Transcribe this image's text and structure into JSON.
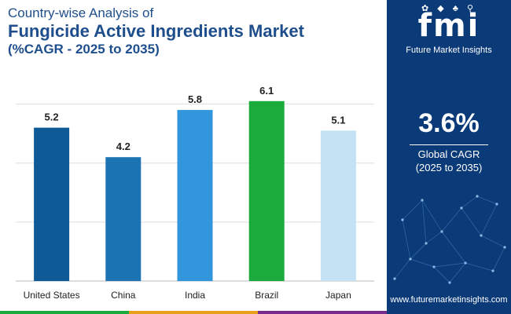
{
  "title": {
    "line1": "Country-wise Analysis of",
    "line2": "Fungicide Active Ingredients Market",
    "line3": "(%CAGR - 2025 to 2035)"
  },
  "chart_data": {
    "type": "bar",
    "categories": [
      "United States",
      "China",
      "India",
      "Brazil",
      "Japan"
    ],
    "values": [
      5.2,
      4.2,
      5.8,
      6.1,
      5.1
    ],
    "value_labels": [
      "5.2",
      "4.2",
      "5.8",
      "6.1",
      "5.1"
    ],
    "bar_colors": [
      "#0e5a96",
      "#1d74b4",
      "#3296dc",
      "#1aab3c",
      "#c5e2f5"
    ],
    "ylim": [
      0,
      7
    ],
    "grid": true,
    "xlabel": "",
    "ylabel": ""
  },
  "side_panel": {
    "logo_text": "fmi",
    "logo_icons": "✿ ◆ ♣ ⚲",
    "brand_name": "Future Market Insights",
    "global_value": "3.6%",
    "global_label": "Global CAGR",
    "global_period": "(2025 to 2035)",
    "website": "www.futuremarketinsights.com"
  },
  "colors": {
    "title": "#1f4e8c",
    "panel": "#0b3a78",
    "grid": "#dddddd",
    "stripe": [
      "#1aab3c",
      "#e8a01c",
      "#7a2b8e"
    ]
  }
}
